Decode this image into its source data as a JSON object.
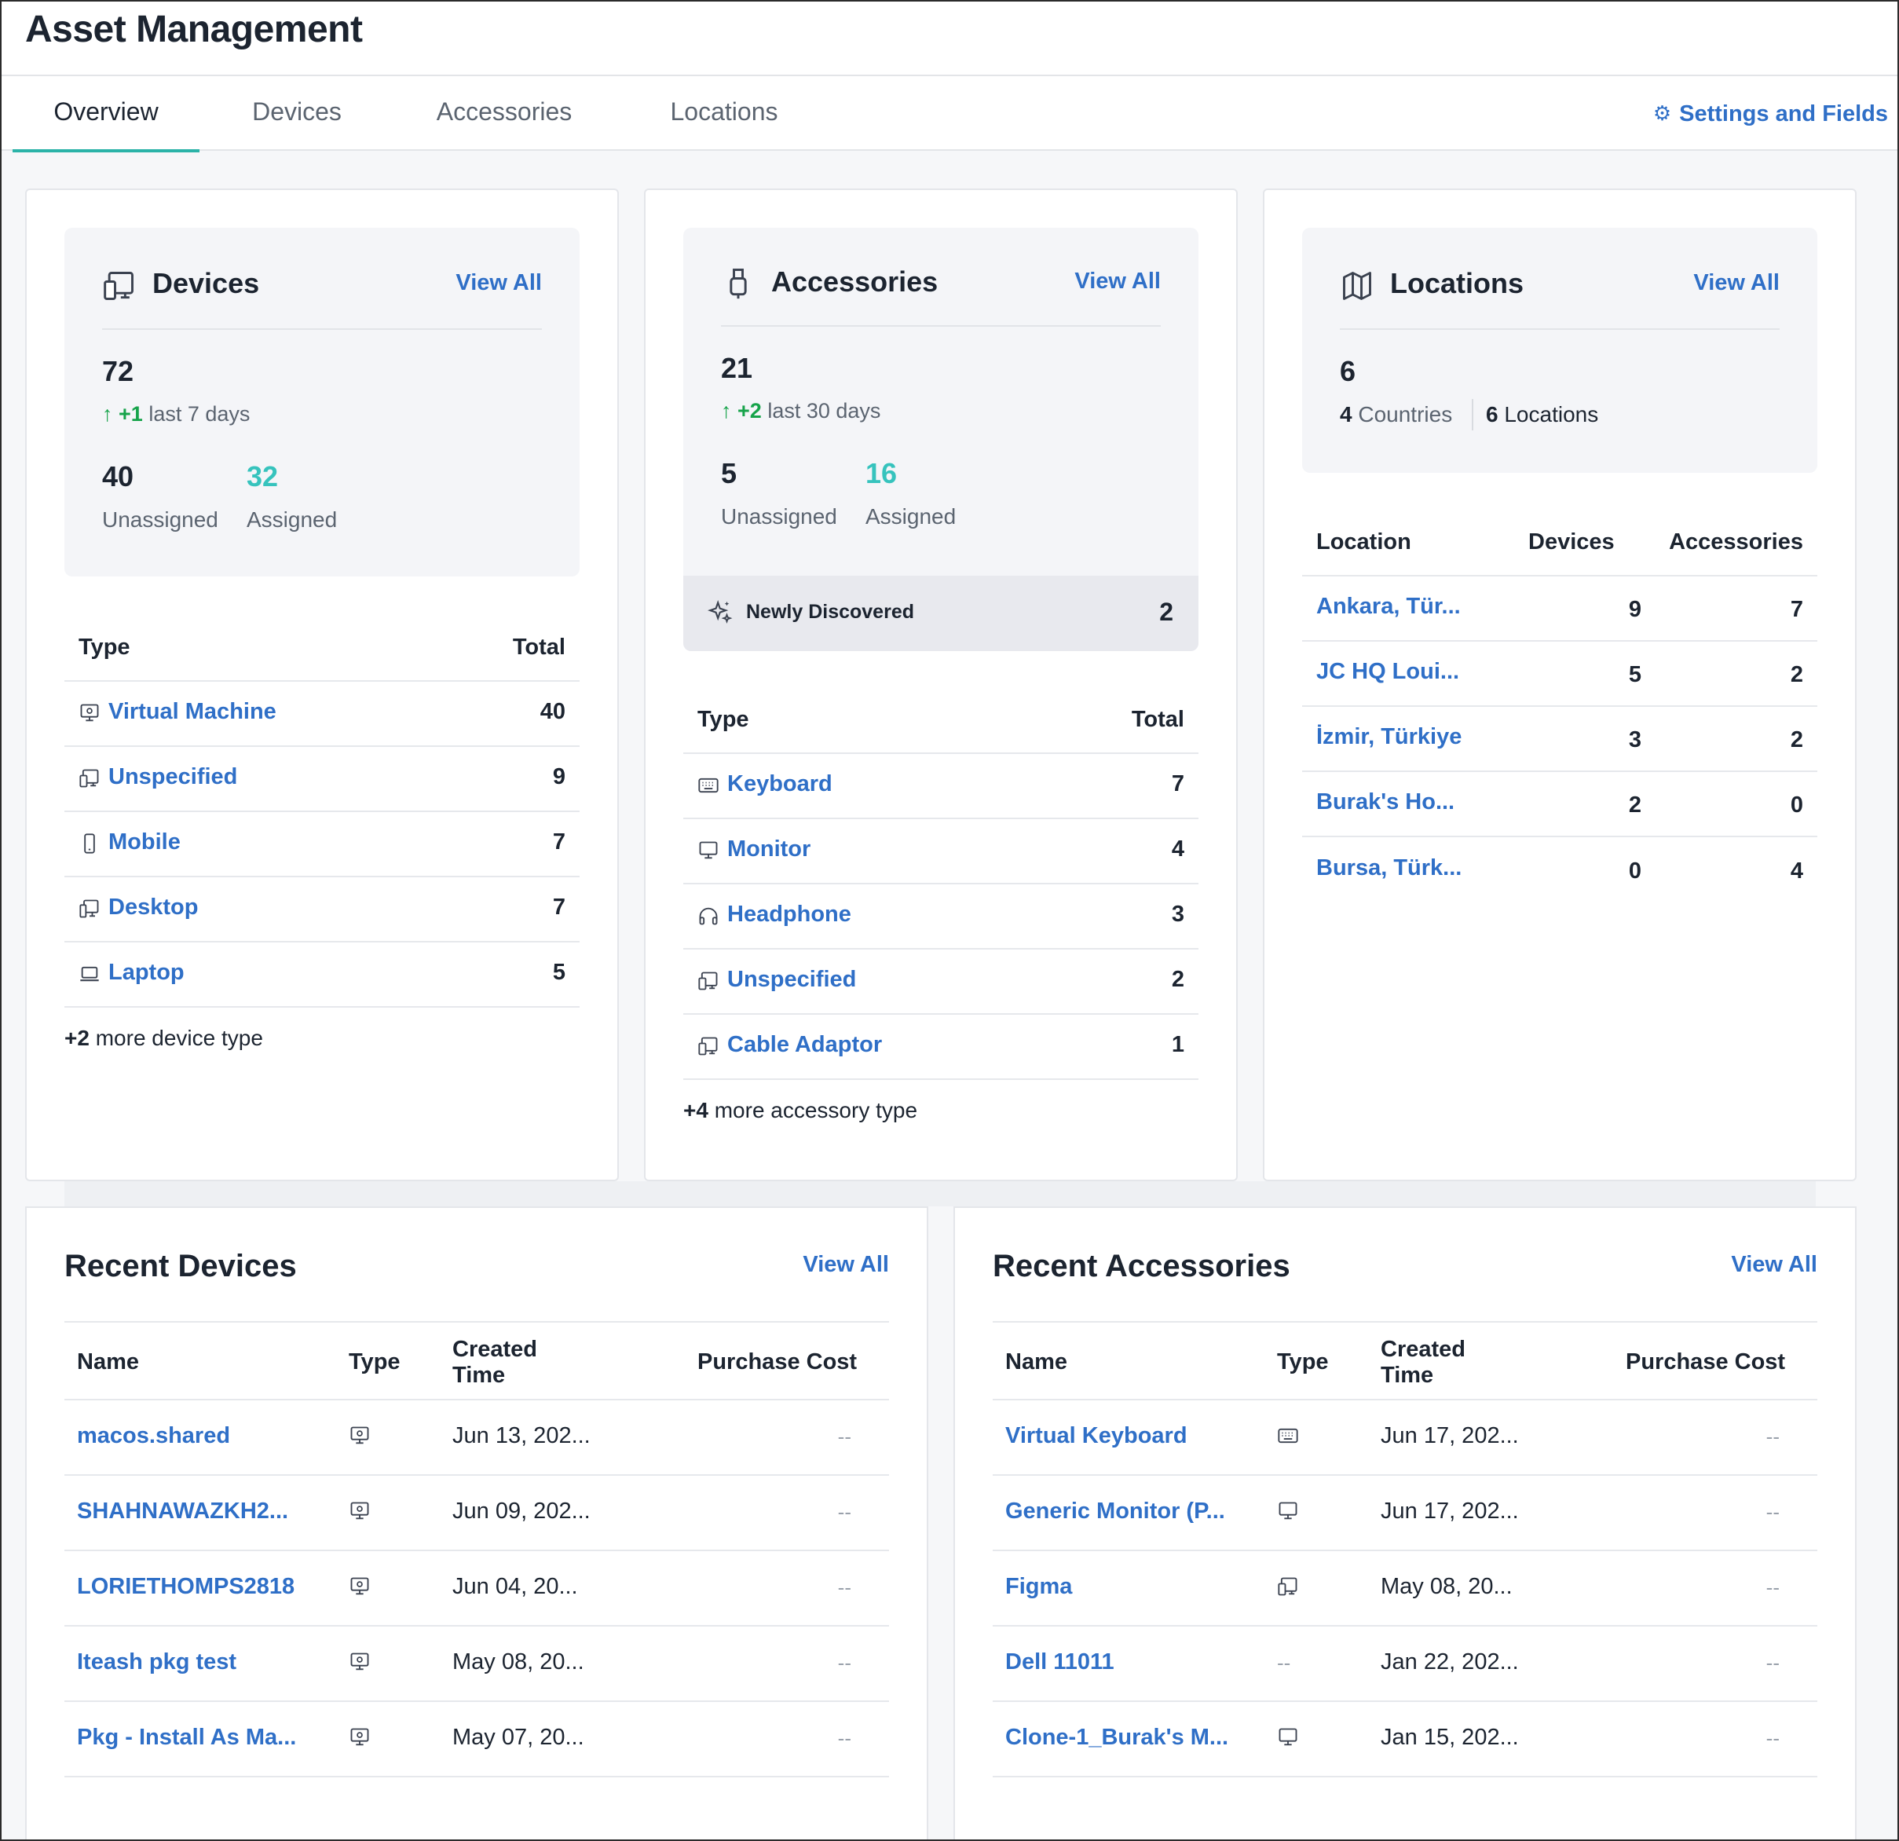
{
  "app": {
    "title": "Asset Management"
  },
  "tabs": [
    {
      "label": "Overview",
      "active": true
    },
    {
      "label": "Devices"
    },
    {
      "label": "Accessories"
    },
    {
      "label": "Locations"
    }
  ],
  "settings_link": "Settings and Fields",
  "devices_card": {
    "title": "Devices",
    "view_all": "View All",
    "total": "72",
    "delta_value": "+1",
    "delta_period": "last 7 days",
    "unassigned_count": "40",
    "unassigned_label": "Unassigned",
    "assigned_count": "32",
    "assigned_label": "Assigned",
    "col_type": "Type",
    "col_total": "Total",
    "rows": [
      {
        "label": "Virtual Machine",
        "value": "40",
        "icon": "virtual-machine-icon"
      },
      {
        "label": "Unspecified",
        "value": "9",
        "icon": "devices-icon"
      },
      {
        "label": "Mobile",
        "value": "7",
        "icon": "mobile-icon"
      },
      {
        "label": "Desktop",
        "value": "7",
        "icon": "desktop-icon"
      },
      {
        "label": "Laptop",
        "value": "5",
        "icon": "laptop-icon"
      }
    ],
    "more_count": "+2",
    "more_text": "more device type"
  },
  "accessories_card": {
    "title": "Accessories",
    "view_all": "View All",
    "total": "21",
    "delta_value": "+2",
    "delta_period": "last 30 days",
    "unassigned_count": "5",
    "unassigned_label": "Unassigned",
    "assigned_count": "16",
    "assigned_label": "Assigned",
    "newly_label": "Newly Discovered",
    "newly_count": "2",
    "col_type": "Type",
    "col_total": "Total",
    "rows": [
      {
        "label": "Keyboard",
        "value": "7",
        "icon": "keyboard-icon"
      },
      {
        "label": "Monitor",
        "value": "4",
        "icon": "monitor-icon"
      },
      {
        "label": "Headphone",
        "value": "3",
        "icon": "headphone-icon"
      },
      {
        "label": "Unspecified",
        "value": "2",
        "icon": "devices-icon"
      },
      {
        "label": "Cable Adaptor",
        "value": "1",
        "icon": "devices-icon"
      }
    ],
    "more_count": "+4",
    "more_text": "more accessory type"
  },
  "locations_card": {
    "title": "Locations",
    "view_all": "View All",
    "total": "6",
    "countries_count": "4",
    "countries_label": "Countries",
    "locations_count": "6",
    "locations_label": "Locations",
    "col_location": "Location",
    "col_devices": "Devices",
    "col_accessories": "Accessories",
    "rows": [
      {
        "name": "Ankara, Tür...",
        "devices": "9",
        "accessories": "7"
      },
      {
        "name": "JC HQ Loui...",
        "devices": "5",
        "accessories": "2"
      },
      {
        "name": "İzmir, Türkiye",
        "devices": "3",
        "accessories": "2"
      },
      {
        "name": "Burak's Ho...",
        "devices": "2",
        "accessories": "0"
      },
      {
        "name": "Bursa, Türk...",
        "devices": "0",
        "accessories": "4"
      }
    ]
  },
  "recent_devices": {
    "title": "Recent Devices",
    "view_all": "View All",
    "col_name": "Name",
    "col_type": "Type",
    "col_created_1": "Created",
    "col_created_2": "Time",
    "col_cost": "Purchase Cost",
    "rows": [
      {
        "name": "macos.shared",
        "type_icon": "virtual-machine-icon",
        "created": "Jun 13, 202...",
        "cost": "--"
      },
      {
        "name": "SHAHNAWAZKH2...",
        "type_icon": "virtual-machine-icon",
        "created": "Jun 09, 202...",
        "cost": "--"
      },
      {
        "name": "LORIETHOMPS2818",
        "type_icon": "virtual-machine-icon",
        "created": "Jun 04, 20...",
        "cost": "--"
      },
      {
        "name": "Iteash pkg test",
        "type_icon": "virtual-machine-icon",
        "created": "May 08, 20...",
        "cost": "--"
      },
      {
        "name": "Pkg - Install As Ma...",
        "type_icon": "virtual-machine-icon",
        "created": "May 07, 20...",
        "cost": "--"
      }
    ]
  },
  "recent_accessories": {
    "title": "Recent Accessories",
    "view_all": "View All",
    "col_name": "Name",
    "col_type": "Type",
    "col_created_1": "Created",
    "col_created_2": "Time",
    "col_cost": "Purchase Cost",
    "rows": [
      {
        "name": "Virtual Keyboard",
        "type_icon": "keyboard-icon",
        "type_text": "",
        "created": "Jun 17, 202...",
        "cost": "--"
      },
      {
        "name": "Generic Monitor (P...",
        "type_icon": "monitor-icon",
        "type_text": "",
        "created": "Jun 17, 202...",
        "cost": "--"
      },
      {
        "name": "Figma",
        "type_icon": "devices-icon",
        "type_text": "",
        "created": "May 08, 20...",
        "cost": "--"
      },
      {
        "name": "Dell 11011",
        "type_icon": "",
        "type_text": "--",
        "created": "Jan 22, 202...",
        "cost": "--"
      },
      {
        "name": "Clone-1_Burak's M...",
        "type_icon": "monitor-icon",
        "type_text": "",
        "created": "Jan 15, 202...",
        "cost": "--"
      }
    ]
  },
  "colors": {
    "accent": "#2bb3a8",
    "link": "#2f6fc7",
    "positive": "#16a34a",
    "assigned": "#36c3bd"
  }
}
